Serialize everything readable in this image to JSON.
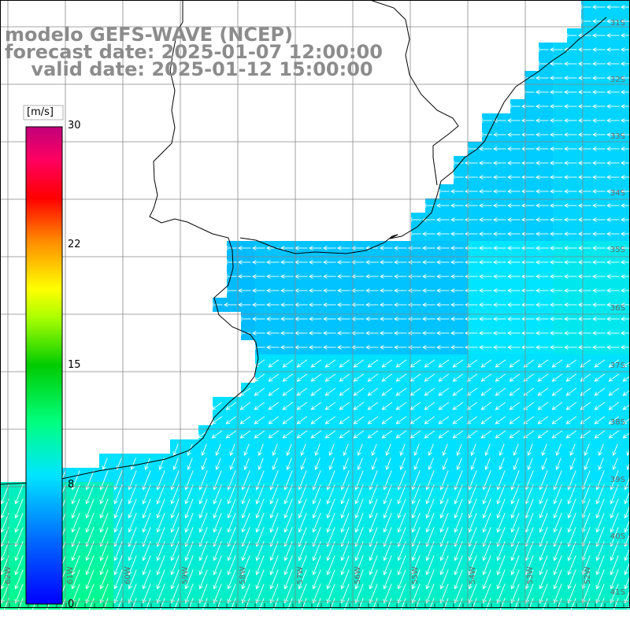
{
  "titles": {
    "line1": "modelo GEFS-WAVE (NCEP)",
    "line2": "forecast date: 2025-01-07 12:00:00",
    "line3": "    valid date: 2025-01-12 15:00:00"
  },
  "colorbar": {
    "unit": "[m/s]",
    "ticks": [
      "30",
      "22",
      "15",
      "8",
      "0"
    ],
    "range": [
      0,
      30
    ],
    "colors": [
      "#0000ff",
      "#0088ff",
      "#00ddff",
      "#00ff88",
      "#00dd00",
      "#88ff00",
      "#ffff00",
      "#ff8800",
      "#ff0000",
      "#ff0066",
      "#c0007a"
    ]
  },
  "lat_labels": [
    "31S",
    "32S",
    "33S",
    "34S",
    "35S",
    "36S",
    "37S",
    "38S",
    "39S",
    "40S",
    "41S"
  ],
  "lon_labels": [
    "62W",
    "61W",
    "60W",
    "59W",
    "58W",
    "57W",
    "56W",
    "55W",
    "54W",
    "53W",
    "52W"
  ],
  "map": {
    "field": "wind speed [m/s]",
    "land_color": "#ffffff",
    "coast_color": "#000000",
    "grid_color": "#888888"
  }
}
